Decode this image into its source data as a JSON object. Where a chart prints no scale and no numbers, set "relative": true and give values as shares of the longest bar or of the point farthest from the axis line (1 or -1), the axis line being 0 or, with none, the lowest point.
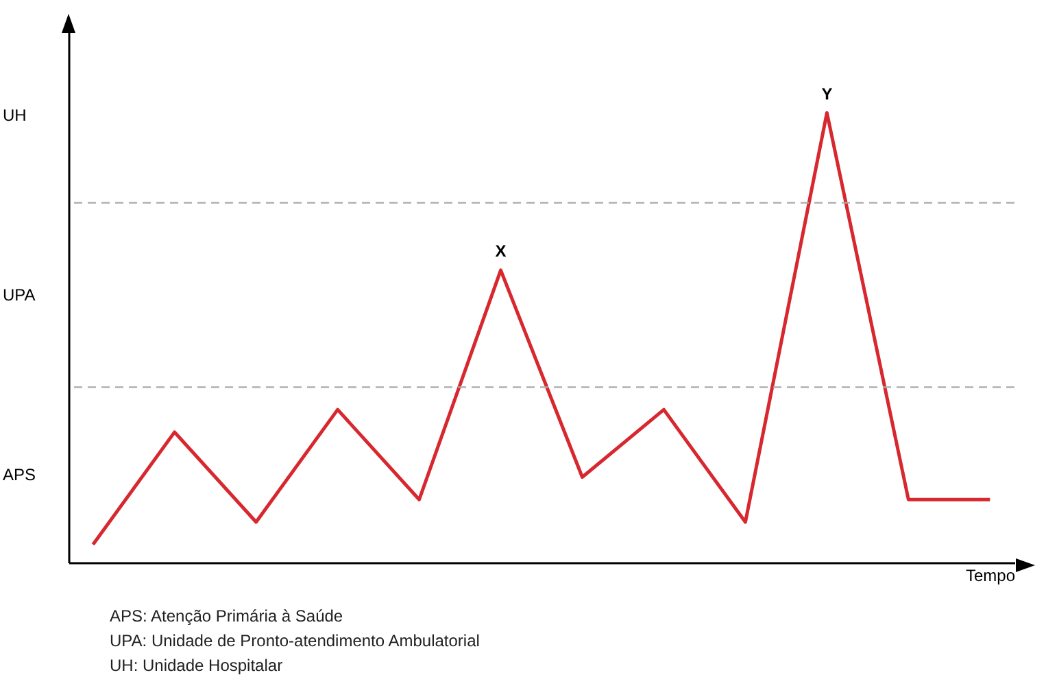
{
  "chart_data": {
    "type": "line",
    "relative": true,
    "xlabel": "Tempo",
    "categories": [
      null,
      null,
      null,
      null,
      null,
      null,
      null,
      null,
      null,
      null,
      null,
      null
    ],
    "series": [
      {
        "color": "#d7282f",
        "values": [
          0.04,
          0.29,
          0.09,
          0.34,
          0.14,
          0.65,
          0.19,
          0.34,
          0.09,
          1,
          0.14,
          0.14
        ]
      }
    ],
    "ref_lines": [
      {
        "axis": "y",
        "value": 0.39,
        "color": "#aaaaaa",
        "line_style": "dashed"
      },
      {
        "axis": "y",
        "value": 0.8,
        "color": "#aaaaaa",
        "line_style": "dashed"
      }
    ],
    "annotations": [
      "APS",
      "UPA",
      "UH",
      {
        "text": "X",
        "y": 0.65
      },
      {
        "text": "Y",
        "y": 1
      },
      "APS: Atenção Primária à Saúde",
      "UPA: Unidade de Pronto-atendimento Ambulatorial",
      "UH: Unidade Hospitalar"
    ],
    "grid": false,
    "marker": "none",
    "line_style": "solid"
  }
}
